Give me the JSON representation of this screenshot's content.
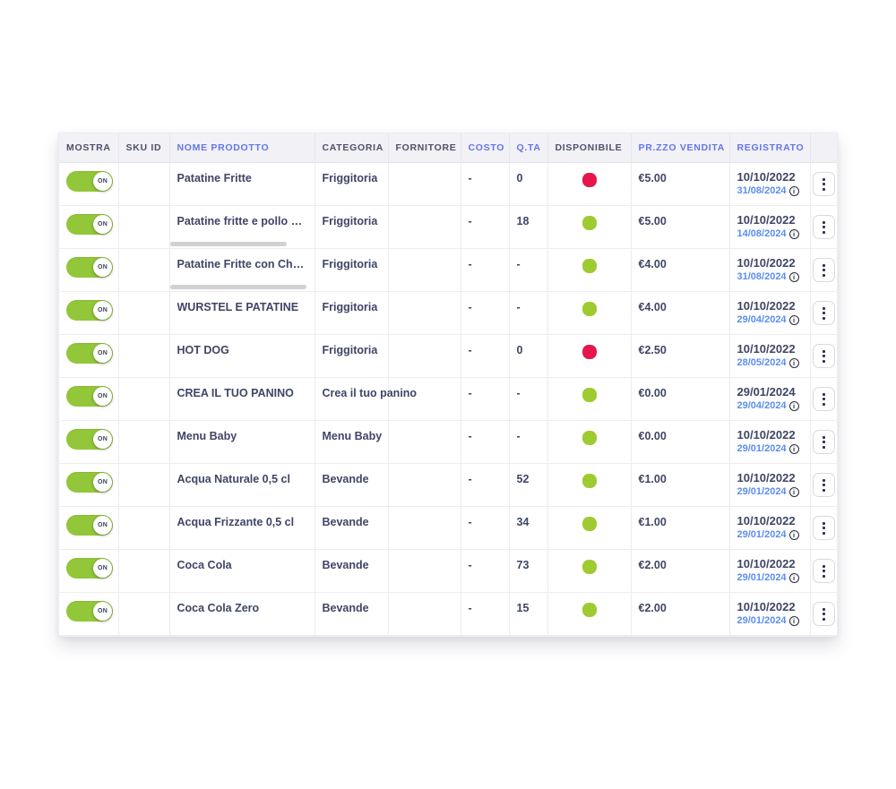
{
  "colors": {
    "accent": "#6476e8",
    "datelink": "#5b8def",
    "text": "#3f4566",
    "headtext": "#50506a",
    "headbg": "#f1f1f6",
    "border": "#ececf1",
    "togglegreen": "#92c73a",
    "dotgreen": "#9ecb31",
    "dotred": "#e5164c",
    "thumb": "#d1d1d1",
    "btnborder": "#d9d9e0"
  },
  "icons": {
    "info": "i",
    "row_actions": "kebab-vertical-dots",
    "toggle": "on-switch"
  },
  "table": {
    "columns": [
      {
        "label": "MOSTRA",
        "accent": false
      },
      {
        "label": "SKU ID",
        "accent": false
      },
      {
        "label": "NOME PRODOTTO",
        "accent": true
      },
      {
        "label": "CATEGORIA",
        "accent": false
      },
      {
        "label": "FORNITORE",
        "accent": false
      },
      {
        "label": "COSTO",
        "accent": true
      },
      {
        "label": "Q.TA",
        "accent": true
      },
      {
        "label": "DISPONIBILE",
        "accent": false
      },
      {
        "label": "PR.ZZO VENDITA",
        "accent": true
      },
      {
        "label": "REGISTRATO",
        "accent": true
      },
      {
        "label": "",
        "accent": false
      }
    ],
    "rows": [
      {
        "mostra": "ON",
        "sku_id": "",
        "nome_prodotto": "Patatine Fritte",
        "categoria": "Friggitoria",
        "fornitore": "",
        "costo": "-",
        "qta": "0",
        "disponibile": "red",
        "prezzo_vendita": "€5.00",
        "registrato": "10/10/2022",
        "aggiornato": "31/08/2024",
        "name_scrollbar_width": 0
      },
      {
        "mostra": "ON",
        "sku_id": "",
        "nome_prodotto": "Patatine fritte e pollo cr...",
        "categoria": "Friggitoria",
        "fornitore": "",
        "costo": "-",
        "qta": "18",
        "disponibile": "green",
        "prezzo_vendita": "€5.00",
        "registrato": "10/10/2022",
        "aggiornato": "14/08/2024",
        "name_scrollbar_width": 130
      },
      {
        "mostra": "ON",
        "sku_id": "",
        "nome_prodotto": "Patatine Fritte con Ched...",
        "categoria": "Friggitoria",
        "fornitore": "",
        "costo": "-",
        "qta": "-",
        "disponibile": "green",
        "prezzo_vendita": "€4.00",
        "registrato": "10/10/2022",
        "aggiornato": "31/08/2024",
        "name_scrollbar_width": 152
      },
      {
        "mostra": "ON",
        "sku_id": "",
        "nome_prodotto": "WURSTEL E PATATINE",
        "categoria": "Friggitoria",
        "fornitore": "",
        "costo": "-",
        "qta": "-",
        "disponibile": "green",
        "prezzo_vendita": "€4.00",
        "registrato": "10/10/2022",
        "aggiornato": "29/04/2024",
        "name_scrollbar_width": 0
      },
      {
        "mostra": "ON",
        "sku_id": "",
        "nome_prodotto": "HOT DOG",
        "categoria": "Friggitoria",
        "fornitore": "",
        "costo": "-",
        "qta": "0",
        "disponibile": "red",
        "prezzo_vendita": "€2.50",
        "registrato": "10/10/2022",
        "aggiornato": "28/05/2024",
        "name_scrollbar_width": 0
      },
      {
        "mostra": "ON",
        "sku_id": "",
        "nome_prodotto": "CREA IL TUO PANINO",
        "categoria": "Crea il tuo panino",
        "fornitore": "",
        "costo": "-",
        "qta": "-",
        "disponibile": "green",
        "prezzo_vendita": "€0.00",
        "registrato": "29/01/2024",
        "aggiornato": "29/04/2024",
        "name_scrollbar_width": 0
      },
      {
        "mostra": "ON",
        "sku_id": "",
        "nome_prodotto": "Menu Baby",
        "categoria": "Menu Baby",
        "fornitore": "",
        "costo": "-",
        "qta": "-",
        "disponibile": "green",
        "prezzo_vendita": "€0.00",
        "registrato": "10/10/2022",
        "aggiornato": "29/01/2024",
        "name_scrollbar_width": 0
      },
      {
        "mostra": "ON",
        "sku_id": "",
        "nome_prodotto": "Acqua Naturale 0,5 cl",
        "categoria": "Bevande",
        "fornitore": "",
        "costo": "-",
        "qta": "52",
        "disponibile": "green",
        "prezzo_vendita": "€1.00",
        "registrato": "10/10/2022",
        "aggiornato": "29/01/2024",
        "name_scrollbar_width": 0
      },
      {
        "mostra": "ON",
        "sku_id": "",
        "nome_prodotto": "Acqua Frizzante 0,5 cl",
        "categoria": "Bevande",
        "fornitore": "",
        "costo": "-",
        "qta": "34",
        "disponibile": "green",
        "prezzo_vendita": "€1.00",
        "registrato": "10/10/2022",
        "aggiornato": "29/01/2024",
        "name_scrollbar_width": 0
      },
      {
        "mostra": "ON",
        "sku_id": "",
        "nome_prodotto": "Coca Cola",
        "categoria": "Bevande",
        "fornitore": "",
        "costo": "-",
        "qta": "73",
        "disponibile": "green",
        "prezzo_vendita": "€2.00",
        "registrato": "10/10/2022",
        "aggiornato": "29/01/2024",
        "name_scrollbar_width": 0
      },
      {
        "mostra": "ON",
        "sku_id": "",
        "nome_prodotto": "Coca Cola Zero",
        "categoria": "Bevande",
        "fornitore": "",
        "costo": "-",
        "qta": "15",
        "disponibile": "green",
        "prezzo_vendita": "€2.00",
        "registrato": "10/10/2022",
        "aggiornato": "29/01/2024",
        "name_scrollbar_width": 0
      }
    ]
  }
}
